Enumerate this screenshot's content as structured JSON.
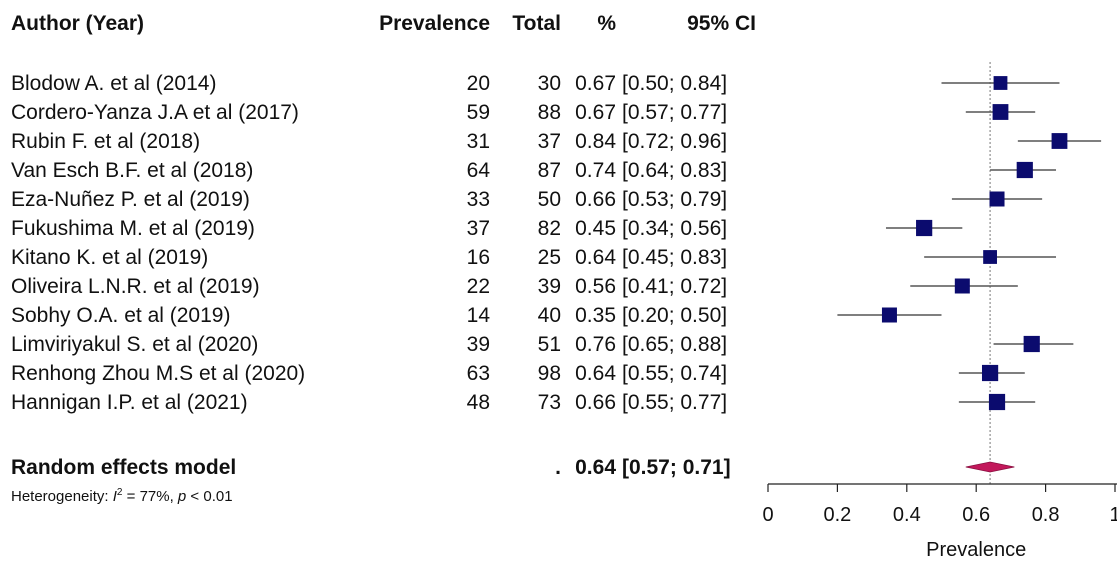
{
  "headers": {
    "author": "Author (Year)",
    "prevalence": "Prevalence",
    "total": "Total",
    "percent": "%",
    "ci": "95% CI"
  },
  "chart_data": {
    "type": "forest",
    "xlabel": "Prevalence",
    "xlim": [
      0,
      1
    ],
    "xticks": [
      "0",
      "0.2",
      "0.4",
      "0.6",
      "0.8",
      "1"
    ],
    "reference_line": 0.64,
    "studies": [
      {
        "author": "Blodow A. et al (2014)",
        "events": "20",
        "total": "30",
        "pct": "0.67",
        "ci": "[0.50; 0.84]",
        "est": 0.67,
        "lo": 0.5,
        "hi": 0.84,
        "weight": 0.6
      },
      {
        "author": "Cordero-Yanza J.A et al (2017)",
        "events": "59",
        "total": "88",
        "pct": "0.67",
        "ci": "[0.57; 0.77]",
        "est": 0.67,
        "lo": 0.57,
        "hi": 0.77,
        "weight": 0.85
      },
      {
        "author": "Rubin F. et al (2018)",
        "events": "31",
        "total": "37",
        "pct": "0.84",
        "ci": "[0.72; 0.96]",
        "est": 0.84,
        "lo": 0.72,
        "hi": 0.96,
        "weight": 0.85
      },
      {
        "author": "Van Esch B.F. et al (2018)",
        "events": "64",
        "total": "87",
        "pct": "0.74",
        "ci": "[0.64; 0.83]",
        "est": 0.74,
        "lo": 0.64,
        "hi": 0.83,
        "weight": 0.9
      },
      {
        "author": "Eza-Nuñez P. et al (2019)",
        "events": "33",
        "total": "50",
        "pct": "0.66",
        "ci": "[0.53; 0.79]",
        "est": 0.66,
        "lo": 0.53,
        "hi": 0.79,
        "weight": 0.75
      },
      {
        "author": "Fukushima M. et al (2019)",
        "events": "37",
        "total": "82",
        "pct": "0.45",
        "ci": "[0.34; 0.56]",
        "est": 0.45,
        "lo": 0.34,
        "hi": 0.56,
        "weight": 0.9
      },
      {
        "author": "Kitano K. et al (2019)",
        "events": "16",
        "total": "25",
        "pct": "0.64",
        "ci": "[0.45; 0.83]",
        "est": 0.64,
        "lo": 0.45,
        "hi": 0.83,
        "weight": 0.6
      },
      {
        "author": "Oliveira L.N.R. et al (2019)",
        "events": "22",
        "total": "39",
        "pct": "0.56",
        "ci": "[0.41; 0.72]",
        "est": 0.56,
        "lo": 0.41,
        "hi": 0.72,
        "weight": 0.75
      },
      {
        "author": "Sobhy O.A. et al (2019)",
        "events": "14",
        "total": "40",
        "pct": "0.35",
        "ci": "[0.20; 0.50]",
        "est": 0.35,
        "lo": 0.2,
        "hi": 0.5,
        "weight": 0.75
      },
      {
        "author": "Limviriyakul S. et al (2020)",
        "events": "39",
        "total": "51",
        "pct": "0.76",
        "ci": "[0.65; 0.88]",
        "est": 0.76,
        "lo": 0.65,
        "hi": 0.88,
        "weight": 0.9
      },
      {
        "author": "Renhong Zhou M.S et al (2020)",
        "events": "63",
        "total": "98",
        "pct": "0.64",
        "ci": "[0.55; 0.74]",
        "est": 0.64,
        "lo": 0.55,
        "hi": 0.74,
        "weight": 0.9
      },
      {
        "author": "Hannigan I.P. et al (2021)",
        "events": "48",
        "total": "73",
        "pct": "0.66",
        "ci": "[0.55; 0.77]",
        "est": 0.66,
        "lo": 0.55,
        "hi": 0.77,
        "weight": 0.9
      }
    ],
    "summary": {
      "label": "Random effects model",
      "events": ".",
      "pct": "0.64",
      "ci": "[0.57; 0.71]",
      "est": 0.64,
      "lo": 0.57,
      "hi": 0.71
    },
    "heterogeneity": {
      "prefix": "Heterogeneity: ",
      "i2_symbol": "I",
      "i2_value": " = 77%, ",
      "p_symbol": "p",
      "p_value": " < 0.01"
    },
    "colors": {
      "square": "#0b0b6e",
      "ci_line": "#555555",
      "diamond": "#c2185b",
      "ref_line": "#777777"
    }
  }
}
